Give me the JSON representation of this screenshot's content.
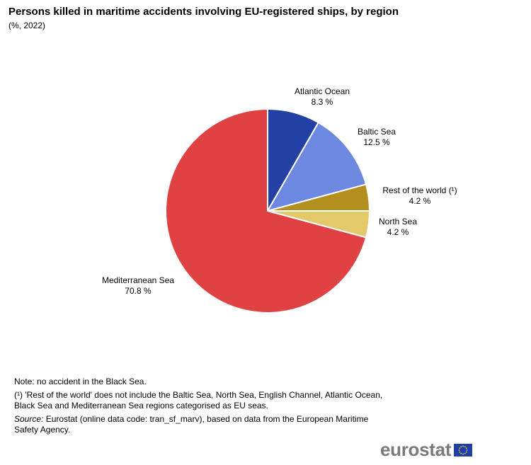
{
  "header": {
    "title": "Persons killed in maritime accidents involving EU-registered ships, by region",
    "subtitle": "(%, 2022)"
  },
  "chart_data": {
    "type": "pie",
    "categories": [
      "Atlantic Ocean",
      "Baltic Sea",
      "Rest of the world (¹)",
      "North Sea",
      "Mediterranean  Sea"
    ],
    "values": [
      8.3,
      12.5,
      4.2,
      4.2,
      70.8
    ],
    "value_labels": [
      "8.3 %",
      "12.5 %",
      "4.2 %",
      "4.2 %",
      "70.8 %"
    ],
    "colors": [
      "#2340a5",
      "#6d88e0",
      "#b38f1f",
      "#e3c96a",
      "#e04143"
    ],
    "start": "12 o'clock",
    "direction": "clockwise"
  },
  "notes": {
    "note": "Note: no accident in the Black Sea.",
    "footnote": "(¹) 'Rest of the world' does not include the Baltic Sea, North Sea, English Channel, Atlantic Ocean, Black Sea and Mediterranean  Sea regions categorised as EU seas.",
    "source_label": "Source:",
    "source_text": " Eurostat (online data code: tran_sf_marv),  based on data from the European Maritime Safety Agency."
  },
  "footer": {
    "logo_text": "eurostat",
    "flag_icon": "eu-flag-icon"
  }
}
